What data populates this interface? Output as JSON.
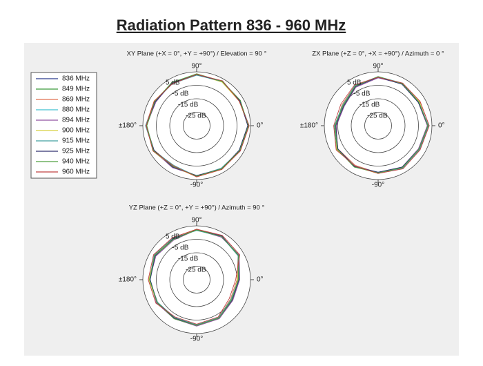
{
  "title": "Radiation Pattern 836 - 960 MHz",
  "chart_data": [
    {
      "type": "polar",
      "title": "XY Plane (+X = 0°, +Y = +90°) / Elevation = 90 °",
      "theta": [
        0,
        30,
        60,
        90,
        120,
        150,
        180,
        210,
        240,
        270,
        300,
        330
      ],
      "rlim": [
        -35,
        5
      ],
      "rticks": [
        {
          "value": 5,
          "label": "5 dB"
        },
        {
          "value": -5,
          "label": "-5 dB"
        },
        {
          "value": -15,
          "label": "-15 dB"
        },
        {
          "value": -25,
          "label": "-25 dB"
        }
      ],
      "angle_ticks": [
        {
          "value": 90,
          "label": "90°"
        },
        {
          "value": 0,
          "label": "0°"
        },
        {
          "value": -90,
          "label": "-90°"
        },
        {
          "value": 180,
          "label": "±180°"
        }
      ],
      "series": [
        {
          "name": "836 MHz",
          "color": "#2b3a8c",
          "values": [
            3.5,
            2,
            3,
            3,
            1.5,
            1,
            2.5,
            2,
            0,
            2.5,
            2,
            2
          ]
        },
        {
          "name": "849 MHz",
          "color": "#3a9a3a",
          "values": [
            3,
            2.5,
            2.5,
            3,
            2,
            0.5,
            2,
            2.5,
            0.5,
            2,
            2.5,
            1.5
          ]
        },
        {
          "name": "869 MHz",
          "color": "#e07050",
          "values": [
            4,
            1.5,
            3,
            3.5,
            1,
            1.5,
            3,
            1.5,
            -0.5,
            3,
            1.5,
            2.5
          ]
        },
        {
          "name": "880 MHz",
          "color": "#40c0d0",
          "values": [
            3.5,
            2,
            3.5,
            2.5,
            1.5,
            1,
            2,
            2,
            0,
            2.5,
            2,
            2
          ]
        },
        {
          "name": "894 MHz",
          "color": "#9050a0",
          "values": [
            3,
            2.5,
            3,
            3,
            2,
            0,
            2.5,
            2,
            1,
            2,
            2,
            2.5
          ]
        },
        {
          "name": "900 MHz",
          "color": "#d8d040",
          "values": [
            3.5,
            1.5,
            2.5,
            3,
            1.5,
            1.5,
            2,
            2.5,
            0,
            3,
            2.5,
            2
          ]
        },
        {
          "name": "915 MHz",
          "color": "#40a0a0",
          "values": [
            4,
            2,
            3,
            2.5,
            1,
            1,
            3,
            2,
            -1,
            2.5,
            1.5,
            2
          ]
        },
        {
          "name": "925 MHz",
          "color": "#303070",
          "values": [
            3,
            2,
            3,
            3,
            1.5,
            0.5,
            2.5,
            1.5,
            0.5,
            2,
            2,
            1.5
          ]
        },
        {
          "name": "940 MHz",
          "color": "#50a040",
          "values": [
            3.5,
            2.5,
            3,
            3.5,
            2,
            1,
            2,
            2,
            0,
            2.5,
            2,
            2
          ]
        },
        {
          "name": "960 MHz",
          "color": "#c04040",
          "values": [
            4,
            1.5,
            3.5,
            3,
            1,
            1.5,
            2.5,
            2.5,
            -0.5,
            3,
            2.5,
            2.5
          ]
        }
      ]
    },
    {
      "type": "polar",
      "title": "ZX Plane (+Z = 0°, +X = +90°) / Azimuth = 0 °",
      "theta": [
        0,
        30,
        60,
        90,
        120,
        150,
        180,
        210,
        240,
        270,
        300,
        330
      ],
      "rlim": [
        -35,
        5
      ],
      "rticks": [
        {
          "value": 5,
          "label": "5 dB"
        },
        {
          "value": -5,
          "label": "-5 dB"
        },
        {
          "value": -15,
          "label": "-15 dB"
        },
        {
          "value": -25,
          "label": "-25 dB"
        }
      ],
      "angle_ticks": [
        {
          "value": 90,
          "label": "90°"
        },
        {
          "value": 0,
          "label": "0°"
        },
        {
          "value": -90,
          "label": "-90°"
        },
        {
          "value": 180,
          "label": "±180°"
        }
      ],
      "series": [
        {
          "name": "836 MHz",
          "color": "#2b3a8c",
          "values": [
            2,
            0,
            1,
            1,
            -1,
            -5,
            -3,
            0,
            0,
            0,
            1,
            0
          ]
        },
        {
          "name": "849 MHz",
          "color": "#3a9a3a",
          "values": [
            2.5,
            -0.5,
            1,
            1.5,
            -1.5,
            -6,
            -2.5,
            0.5,
            0,
            0.5,
            1,
            0
          ]
        },
        {
          "name": "869 MHz",
          "color": "#e07050",
          "values": [
            3,
            1,
            1.5,
            1,
            -0.5,
            -4,
            -3.5,
            -0.5,
            -1,
            0,
            1.5,
            0.5
          ]
        },
        {
          "name": "880 MHz",
          "color": "#40c0d0",
          "values": [
            2,
            0,
            0.5,
            1,
            -1,
            -5.5,
            -3,
            0,
            0.5,
            -0.5,
            1,
            0
          ]
        },
        {
          "name": "894 MHz",
          "color": "#9050a0",
          "values": [
            1.5,
            -0.5,
            1,
            0.5,
            -2,
            -6,
            -4,
            0,
            0,
            0,
            0.5,
            -0.5
          ]
        },
        {
          "name": "900 MHz",
          "color": "#d8d040",
          "values": [
            2,
            0.5,
            1,
            1,
            -1,
            -5,
            -3,
            0.5,
            0,
            0.5,
            1,
            0
          ]
        },
        {
          "name": "915 MHz",
          "color": "#40a0a0",
          "values": [
            2.5,
            0,
            1.5,
            1.5,
            -0.5,
            -4.5,
            -2.5,
            0,
            -0.5,
            0,
            1.5,
            0.5
          ]
        },
        {
          "name": "925 MHz",
          "color": "#303070",
          "values": [
            2,
            -0.5,
            0.5,
            1,
            -1.5,
            -5.5,
            -3.5,
            -0.5,
            0,
            -0.5,
            0.5,
            0
          ]
        },
        {
          "name": "940 MHz",
          "color": "#50a040",
          "values": [
            2,
            0,
            1,
            1.5,
            -1,
            -5,
            -3,
            0,
            0.5,
            0,
            1,
            0
          ]
        },
        {
          "name": "960 MHz",
          "color": "#c04040",
          "values": [
            3,
            1,
            1.5,
            1,
            0,
            -3,
            -2,
            1,
            -0.5,
            0.5,
            2,
            1
          ]
        }
      ]
    },
    {
      "type": "polar",
      "title": "YZ Plane (+Z = 0°, +Y = +90°) / Azimuth = 90 °",
      "theta": [
        0,
        30,
        60,
        90,
        120,
        150,
        180,
        210,
        240,
        270,
        300,
        330
      ],
      "rlim": [
        -35,
        5
      ],
      "rticks": [
        {
          "value": 5,
          "label": "5 dB"
        },
        {
          "value": -5,
          "label": "-5 dB"
        },
        {
          "value": -15,
          "label": "-15 dB"
        },
        {
          "value": -25,
          "label": "-25 dB"
        }
      ],
      "angle_ticks": [
        {
          "value": 90,
          "label": "90°"
        },
        {
          "value": 0,
          "label": "0°"
        },
        {
          "value": -90,
          "label": "-90°"
        },
        {
          "value": 180,
          "label": "±180°"
        }
      ],
      "series": [
        {
          "name": "836 MHz",
          "color": "#2b3a8c",
          "values": [
            -4,
            1,
            2,
            2,
            0,
            1,
            0,
            -1,
            -2,
            -1,
            -2,
            -5
          ]
        },
        {
          "name": "849 MHz",
          "color": "#3a9a3a",
          "values": [
            -3.5,
            1.5,
            2,
            2.5,
            -0.5,
            0.5,
            0.5,
            -1,
            -2,
            -1.5,
            -2,
            -4.5
          ]
        },
        {
          "name": "869 MHz",
          "color": "#e07050",
          "values": [
            -5,
            0.5,
            2.5,
            2,
            0.5,
            1.5,
            0,
            -1.5,
            -2.5,
            -1,
            -2.5,
            -6
          ]
        },
        {
          "name": "880 MHz",
          "color": "#40c0d0",
          "values": [
            -4,
            1,
            2,
            2,
            0,
            1,
            -0.5,
            -1,
            -2,
            -1,
            -2,
            -5
          ]
        },
        {
          "name": "894 MHz",
          "color": "#9050a0",
          "values": [
            -3,
            1.5,
            1.5,
            2,
            -1,
            0,
            0,
            -0.5,
            -1.5,
            -0.5,
            -1.5,
            -4
          ]
        },
        {
          "name": "900 MHz",
          "color": "#d8d040",
          "values": [
            -4.5,
            1,
            2,
            2.5,
            0,
            1,
            0.5,
            -1,
            -2,
            -1,
            -2,
            -5
          ]
        },
        {
          "name": "915 MHz",
          "color": "#40a0a0",
          "values": [
            -4,
            0.5,
            2,
            1.5,
            0.5,
            1.5,
            0,
            -1.5,
            -2.5,
            -1.5,
            -2.5,
            -5.5
          ]
        },
        {
          "name": "925 MHz",
          "color": "#303070",
          "values": [
            -3.5,
            1,
            2.5,
            2,
            0,
            0.5,
            -0.5,
            -1,
            -2,
            -1,
            -2,
            -4.5
          ]
        },
        {
          "name": "940 MHz",
          "color": "#50a040",
          "values": [
            -4,
            1,
            2,
            2,
            -0.5,
            1,
            0,
            -1,
            -1.5,
            -1,
            -2,
            -5
          ]
        },
        {
          "name": "960 MHz",
          "color": "#c04040",
          "values": [
            -6,
            2,
            3,
            2.5,
            1,
            2,
            1,
            0,
            -3,
            -2,
            -3,
            -7
          ]
        }
      ]
    }
  ]
}
